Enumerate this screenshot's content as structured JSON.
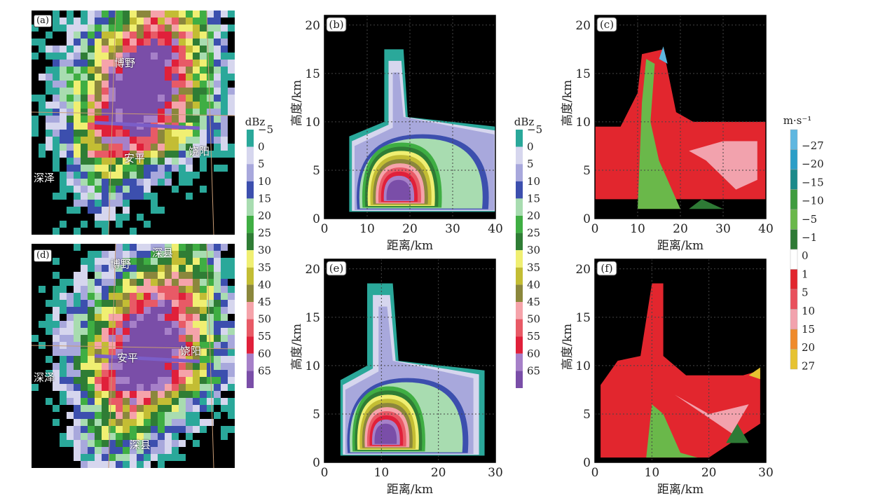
{
  "colors": {
    "dbz": [
      "#2aa89a",
      "#d6d6ee",
      "#a8a8dc",
      "#3c4fae",
      "#a8dcb0",
      "#3fae43",
      "#2f7d35",
      "#f0ef72",
      "#c3bd34",
      "#8b873c",
      "#f5a3aa",
      "#e85a66",
      "#e0203a",
      "#a680c8",
      "#7a4ea8"
    ],
    "vel": [
      "#5fb7e0",
      "#2b9ec7",
      "#1b8a8a",
      "#3f9c3f",
      "#6ab84a",
      "#2e7a35",
      "#ffffff",
      "#e2262e",
      "#e9505c",
      "#f2a2ad",
      "#ef8a2a",
      "#e6c331"
    ],
    "background": "#000000",
    "section_line": "#7b5ec8",
    "map_line": "#c89b74"
  },
  "panels": {
    "a": {
      "tag": "(a)",
      "cities": [
        "博野",
        "安平",
        "饶阳",
        "深泽"
      ]
    },
    "d": {
      "tag": "(d)",
      "cities": [
        "博野",
        "深县",
        "安平",
        "饶阳",
        "深泽",
        "深县"
      ]
    },
    "b": {
      "tag": "(b)"
    },
    "c": {
      "tag": "(c)"
    },
    "e": {
      "tag": "(e)"
    },
    "f": {
      "tag": "(f)"
    }
  },
  "chart_data": [
    {
      "type": "heatmap",
      "panel": "b",
      "title": "(b)",
      "quantity": "dBz",
      "xlabel": "距离/km",
      "ylabel": "高度/km",
      "xlim": [
        0,
        40
      ],
      "ylim": [
        0,
        21
      ],
      "xticks": [
        0,
        10,
        20,
        30,
        40
      ],
      "yticks": [
        0,
        5,
        10,
        15,
        20
      ],
      "echo_top_km": 17.5,
      "core_height_km": [
        2,
        9
      ],
      "core_range_km": [
        12,
        22
      ],
      "max_dbz": 65
    },
    {
      "type": "heatmap",
      "panel": "c",
      "title": "(c)",
      "quantity": "radial velocity m·s-1",
      "xlabel": "距离/km",
      "ylabel": "高度/km",
      "xlim": [
        0,
        40
      ],
      "ylim": [
        0,
        21
      ],
      "xticks": [
        0,
        10,
        20,
        30,
        40
      ],
      "yticks": [
        0,
        5,
        10,
        15,
        20
      ]
    },
    {
      "type": "heatmap",
      "panel": "e",
      "title": "(e)",
      "quantity": "dBz",
      "xlabel": "距离/km",
      "ylabel": "高度/km",
      "xlim": [
        0,
        30
      ],
      "ylim": [
        0,
        21
      ],
      "xticks": [
        0,
        10,
        20,
        30
      ],
      "yticks": [
        0,
        5,
        10,
        15,
        20
      ],
      "echo_top_km": 18.5,
      "core_height_km": [
        1,
        8
      ],
      "core_range_km": [
        6,
        16
      ],
      "max_dbz": 65
    },
    {
      "type": "heatmap",
      "panel": "f",
      "title": "(f)",
      "quantity": "radial velocity m·s-1",
      "xlabel": "距离/km",
      "ylabel": "高度/km",
      "xlim": [
        0,
        30
      ],
      "ylim": [
        0,
        21
      ],
      "xticks": [
        0,
        10,
        20,
        30
      ],
      "yticks": [
        0,
        5,
        10,
        15,
        20
      ]
    }
  ],
  "colorbar_dbz": {
    "unit": "dBz",
    "labels": [
      "−5",
      "0",
      "5",
      "10",
      "15",
      "20",
      "25",
      "30",
      "35",
      "40",
      "45",
      "50",
      "55",
      "60",
      "65"
    ]
  },
  "colorbar_vel": {
    "unit": "m·s⁻¹",
    "labels": [
      "−27",
      "−20",
      "−15",
      "−10",
      "−5",
      "−1",
      "0",
      "1",
      "5",
      "10",
      "15",
      "20",
      "27"
    ]
  }
}
